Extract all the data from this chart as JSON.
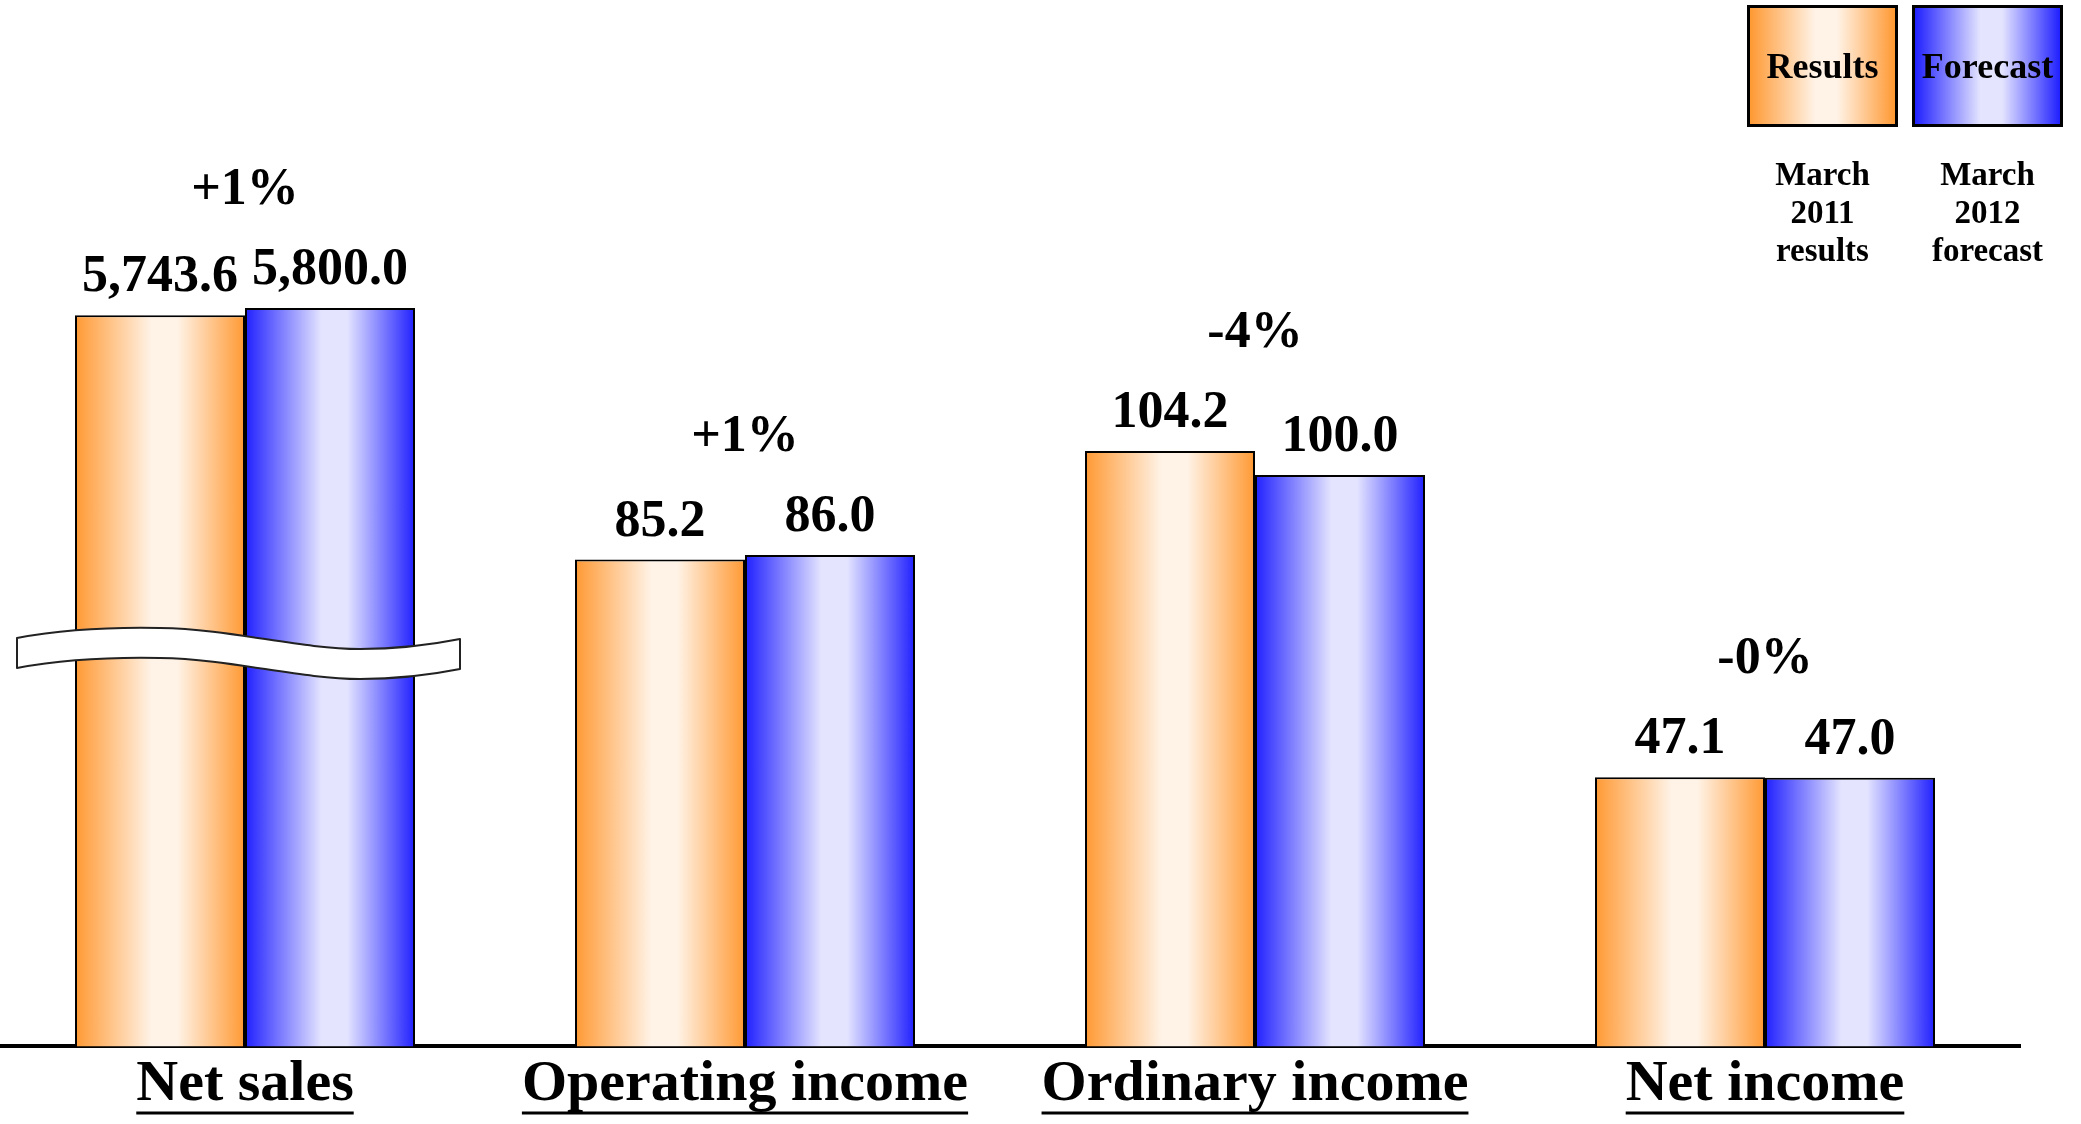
{
  "chart_data": [
    {
      "type": "bar",
      "categories": [
        "Net sales"
      ],
      "series": [
        {
          "color": "#ff9933",
          "values": [
            5743.6
          ],
          "value_labels": [
            "5,743.6"
          ]
        },
        {
          "color": "#2020ff",
          "values": [
            5800.0
          ],
          "value_labels": [
            "5,800.0"
          ]
        }
      ],
      "tick_labels": "x",
      "annotations": [
        "+1%"
      ]
    },
    {
      "type": "bar",
      "categories": [
        "Operating income",
        "Ordinary income",
        "Net income"
      ],
      "series": [
        {
          "name": "Results",
          "color": "#ff9933",
          "values": [
            85.2,
            104.2,
            47.1
          ],
          "value_labels": [
            "85.2",
            "104.2",
            "47.1"
          ]
        },
        {
          "name": "Forecast",
          "color": "#2020ff",
          "values": [
            86.0,
            100.0,
            47.0
          ],
          "value_labels": [
            "86.0",
            "100.0",
            "47.0"
          ]
        }
      ],
      "tick_labels": "x",
      "legend": "top right",
      "annotations": [
        "+1%",
        "-4%",
        "-0%",
        "March 2011 results",
        "March 2012 forecast"
      ]
    }
  ]
}
